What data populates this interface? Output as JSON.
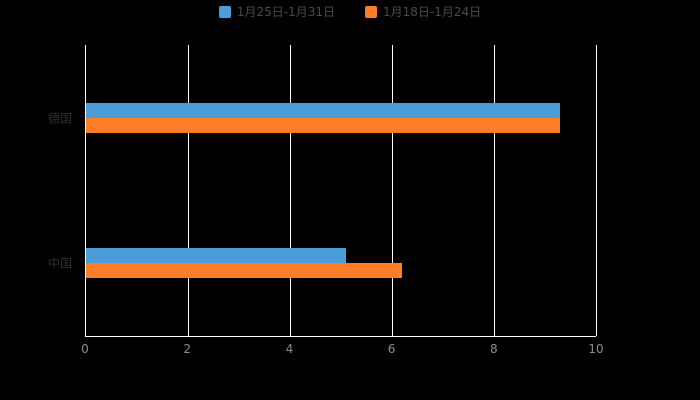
{
  "background_color": "#000000",
  "chart_data": {
    "type": "bar",
    "orientation": "horizontal",
    "title": "",
    "xlabel": "",
    "ylabel": "",
    "categories": [
      "德国",
      "中国"
    ],
    "series": [
      {
        "name": "1月25日-1月31日",
        "color": "#4A9DD9",
        "values": [
          9.3,
          5.1
        ]
      },
      {
        "name": "1月18日-1月24日",
        "color": "#FF7D26",
        "values": [
          9.3,
          6.2
        ]
      }
    ],
    "xlim": [
      0,
      10
    ],
    "xticks": [
      0,
      2,
      4,
      6,
      8,
      10
    ],
    "grid": true,
    "gridline_color": "#ffffff",
    "axis_line_color": "#ffffff",
    "tick_label_color": "#8c8c8c",
    "category_label_color": "#2f2f2f",
    "legend_text_color": "#4a4a4a",
    "legend_position": "top"
  }
}
